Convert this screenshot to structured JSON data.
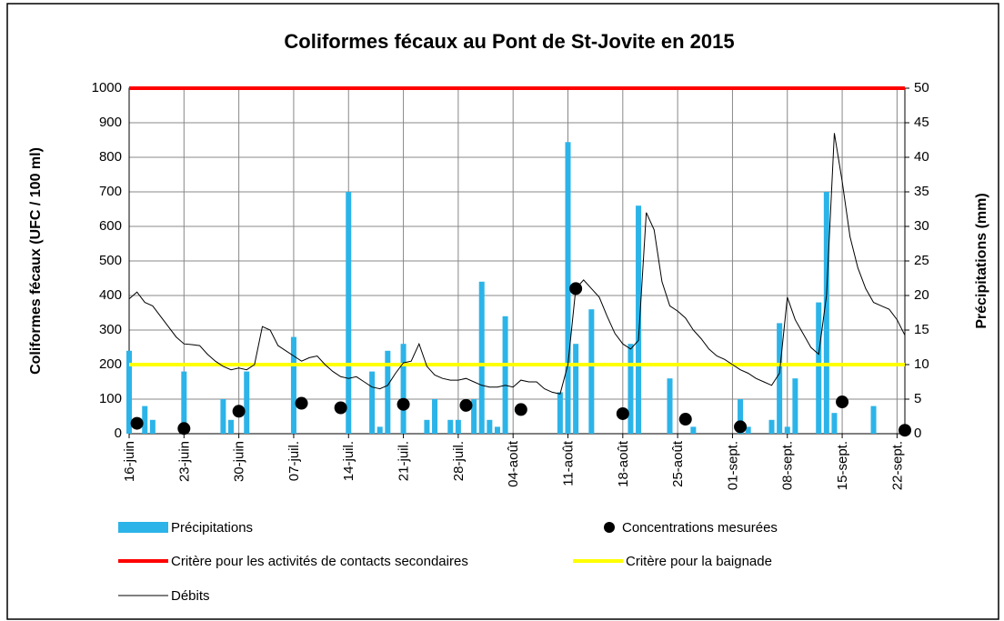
{
  "chart_data": {
    "type": "combo",
    "title": "Coliformes fécaux au Pont de St-Jovite en 2015",
    "ylabel": "Coliformes fécaux (UFC / 100 ml)",
    "y2label": "Précipitations (mm)",
    "categories": [
      "16-juin",
      null,
      null,
      null,
      null,
      null,
      null,
      "23-juin",
      null,
      null,
      null,
      null,
      null,
      null,
      "30-juin",
      null,
      null,
      null,
      null,
      null,
      null,
      "07-juil.",
      null,
      null,
      null,
      null,
      null,
      null,
      "14-juil.",
      null,
      null,
      null,
      null,
      null,
      null,
      "21-juil.",
      null,
      null,
      null,
      null,
      null,
      null,
      "28-juil.",
      null,
      null,
      null,
      null,
      null,
      null,
      "04-août",
      null,
      null,
      null,
      null,
      null,
      null,
      "11-août",
      null,
      null,
      null,
      null,
      null,
      null,
      "18-août",
      null,
      null,
      null,
      null,
      null,
      null,
      "25-août",
      null,
      null,
      null,
      null,
      null,
      null,
      "01-sept.",
      null,
      null,
      null,
      null,
      null,
      null,
      "08-sept.",
      null,
      null,
      null,
      null,
      null,
      null,
      "15-sept.",
      null,
      null,
      null,
      null,
      null,
      null,
      "22-sept.",
      null
    ],
    "ylim": [
      0,
      1000
    ],
    "yticks": [
      0,
      100,
      200,
      300,
      400,
      500,
      600,
      700,
      800,
      900,
      1000
    ],
    "y2lim": [
      0,
      50
    ],
    "y2ticks": [
      0,
      5,
      10,
      15,
      20,
      25,
      30,
      35,
      40,
      45,
      50
    ],
    "grid": true,
    "series": [
      {
        "name": "Précipitations",
        "type": "bar",
        "axis": "y2",
        "color": "#2cb4e8",
        "values": [
          12,
          null,
          4,
          2,
          null,
          null,
          null,
          9,
          null,
          null,
          null,
          null,
          5,
          2,
          null,
          9,
          null,
          null,
          null,
          null,
          null,
          14,
          null,
          null,
          null,
          null,
          null,
          null,
          35,
          null,
          null,
          9,
          1,
          12,
          null,
          13,
          null,
          null,
          2,
          5,
          null,
          2,
          2,
          null,
          5,
          22,
          2,
          1,
          17,
          null,
          null,
          null,
          null,
          null,
          null,
          6,
          42.2,
          13,
          null,
          18,
          null,
          null,
          null,
          null,
          13,
          33,
          null,
          null,
          null,
          8,
          null,
          null,
          1,
          null,
          null,
          null,
          null,
          null,
          5,
          1,
          null,
          null,
          2,
          16,
          1,
          8,
          null,
          null,
          19,
          35,
          3,
          null,
          null,
          null,
          null,
          4,
          null,
          null,
          null,
          null
        ]
      },
      {
        "name": "Concentrations mesurées",
        "type": "scatter",
        "color": "#000000",
        "values": [
          null,
          30,
          null,
          null,
          null,
          null,
          null,
          15,
          null,
          null,
          null,
          null,
          null,
          null,
          65,
          null,
          null,
          null,
          null,
          null,
          null,
          null,
          88,
          null,
          null,
          null,
          null,
          75,
          null,
          null,
          null,
          null,
          null,
          null,
          null,
          85,
          null,
          null,
          null,
          null,
          null,
          null,
          null,
          82,
          null,
          null,
          null,
          null,
          null,
          null,
          70,
          null,
          null,
          null,
          null,
          null,
          null,
          420,
          null,
          null,
          null,
          null,
          null,
          58,
          null,
          null,
          null,
          null,
          null,
          null,
          null,
          42,
          null,
          null,
          null,
          null,
          null,
          null,
          20,
          null,
          null,
          null,
          null,
          null,
          null,
          null,
          null,
          null,
          null,
          null,
          null,
          92,
          null,
          null,
          null,
          null,
          null,
          null,
          null,
          10
        ]
      },
      {
        "name": "Critère pour les activités de contacts secondaires",
        "type": "hline",
        "color": "#ff0000",
        "value": 1000
      },
      {
        "name": "Critère pour la baignade",
        "type": "hline",
        "color": "#ffff00",
        "value": 200
      },
      {
        "name": "Débits",
        "type": "line",
        "color": "#000000",
        "values": [
          390,
          410,
          380,
          370,
          340,
          310,
          280,
          260,
          258,
          255,
          230,
          210,
          195,
          185,
          190,
          185,
          200,
          310,
          300,
          255,
          240,
          225,
          210,
          220,
          225,
          200,
          180,
          165,
          160,
          165,
          150,
          135,
          130,
          140,
          175,
          205,
          210,
          260,
          195,
          170,
          160,
          155,
          155,
          160,
          150,
          140,
          135,
          135,
          140,
          135,
          155,
          150,
          150,
          130,
          120,
          115,
          200,
          420,
          445,
          420,
          395,
          340,
          290,
          260,
          245,
          270,
          640,
          590,
          440,
          370,
          355,
          335,
          300,
          275,
          245,
          225,
          215,
          200,
          185,
          175,
          160,
          150,
          140,
          175,
          395,
          330,
          290,
          250,
          230,
          400,
          870,
          730,
          570,
          480,
          420,
          380,
          370,
          360,
          330,
          285
        ]
      }
    ]
  }
}
